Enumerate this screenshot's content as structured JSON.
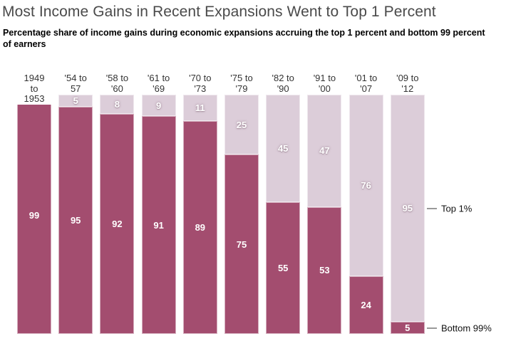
{
  "page": {
    "title": "Most Income Gains in Recent Expansions Went to Top 1 Percent",
    "subtitle_line1": "Percentage share of income gains during economic expansions accruing the top 1 percent and bottom 99 percent",
    "subtitle_line2": "of earners"
  },
  "chart_data": {
    "type": "bar",
    "variant": "stacked-100-percent",
    "title": "Most Income Gains in Recent Expansions Went to Top 1 Percent",
    "subtitle": "Percentage share of income gains during economic expansions accruing the top 1 percent and bottom 99 percent of earners",
    "categories": [
      "1949 to 1953",
      "'54 to 57",
      "'58 to '60",
      "'61 to '69",
      "'70 to '73",
      "'75 to '79",
      "'82 to '90",
      "'91 to '00",
      "'01 to '07",
      "'09 to '12"
    ],
    "category_label_lines": [
      [
        "1949",
        "to",
        "1953"
      ],
      [
        "'54 to",
        "57"
      ],
      [
        "'58 to",
        "'60"
      ],
      [
        "'61 to",
        "'69"
      ],
      [
        "'70 to",
        "'73"
      ],
      [
        "'75 to",
        "'79"
      ],
      [
        "'82 to",
        "'90"
      ],
      [
        "'91 to",
        "'00"
      ],
      [
        "'01 to",
        "'07"
      ],
      [
        "'09 to",
        "'12"
      ]
    ],
    "series": [
      {
        "name": "Top 1%",
        "color": "#dccdd9",
        "values": [
          1,
          5,
          8,
          9,
          11,
          25,
          45,
          47,
          76,
          95
        ]
      },
      {
        "name": "Bottom 99%",
        "color": "#a34d6f",
        "values": [
          99,
          95,
          92,
          91,
          89,
          75,
          55,
          53,
          24,
          5
        ]
      }
    ],
    "stack_order": "Top 1% segment drawn above Bottom 99% segment",
    "ylim": [
      0,
      100
    ],
    "grid": false,
    "value_label_color": "#ffffff",
    "annotation_line_color": "#999999",
    "annotations": [
      {
        "text": "Top 1%",
        "attached_to": "last-bar-top-segment"
      },
      {
        "text": "Bottom 99%",
        "attached_to": "last-bar-bottom-segment"
      }
    ]
  },
  "colors": {
    "dark_segment": "#a34d6f",
    "light_segment": "#dccdd9",
    "title": "#4a4a4a",
    "category_label": "#333333",
    "annotation_dash": "#999999"
  }
}
